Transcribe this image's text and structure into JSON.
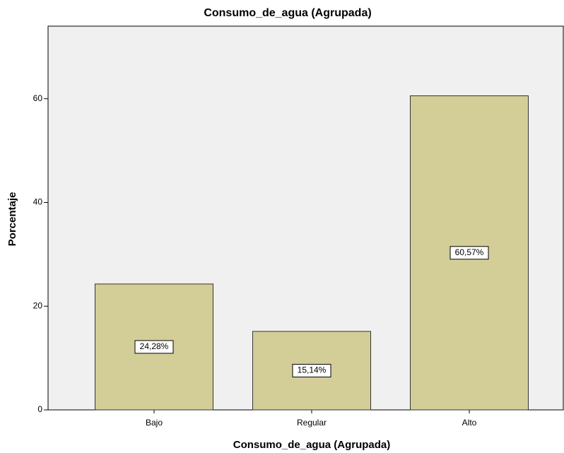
{
  "chart_data": {
    "type": "bar",
    "title": "Consumo_de_agua (Agrupada)",
    "x_label": "Consumo_de_agua (Agrupada)",
    "y_label": "Porcentaje",
    "categories": [
      "Bajo",
      "Regular",
      "Alto"
    ],
    "values": [
      24.28,
      15.14,
      60.57
    ],
    "value_labels": [
      "24,28%",
      "15,14%",
      "60,57%"
    ],
    "color": "#d3ce97",
    "ylim": [
      0,
      74
    ],
    "yticks": [
      0,
      20,
      40,
      60
    ],
    "grid": false
  }
}
